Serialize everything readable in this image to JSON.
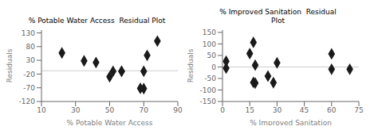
{
  "chart_data": [
    {
      "type": "scatter",
      "title": "% Potable Water Access  Residual Plot",
      "xlabel": "% Potable Water Access",
      "ylabel": "Residuals",
      "x": [
        22,
        35,
        42,
        50,
        52,
        57,
        57,
        68,
        70,
        70,
        72,
        78
      ],
      "values": [
        57,
        28,
        22,
        -30,
        -10,
        -10,
        -10,
        -72,
        -73,
        -10,
        48,
        100
      ],
      "hline_y": -8,
      "xlim": [
        10,
        90
      ],
      "ylim": [
        -120,
        140
      ],
      "xticks": [
        10,
        30,
        50,
        70,
        90
      ],
      "yticks": [
        -120,
        -70,
        -20,
        30,
        80,
        130
      ],
      "color": "#1a1a1a",
      "marker": "diamond",
      "grid": false
    },
    {
      "type": "scatter",
      "title": "% Improved Sanitation  Residual\nPlot",
      "xlabel": "% Improved Sanitation",
      "ylabel": "Residuals",
      "x": [
        2,
        2,
        15,
        17,
        17,
        18,
        18,
        25,
        28,
        30,
        60,
        60,
        70
      ],
      "values": [
        25,
        -5,
        58,
        107,
        -67,
        -70,
        8,
        -40,
        -68,
        18,
        -10,
        57,
        -10
      ],
      "hline_y": 0,
      "xlim": [
        0,
        75
      ],
      "ylim": [
        -150,
        160
      ],
      "xticks": [
        0,
        15,
        30,
        45,
        60,
        75
      ],
      "yticks": [
        -150,
        -100,
        -50,
        0,
        50,
        100,
        150
      ],
      "color": "#1a1a1a",
      "marker": "diamond",
      "grid": false
    }
  ]
}
